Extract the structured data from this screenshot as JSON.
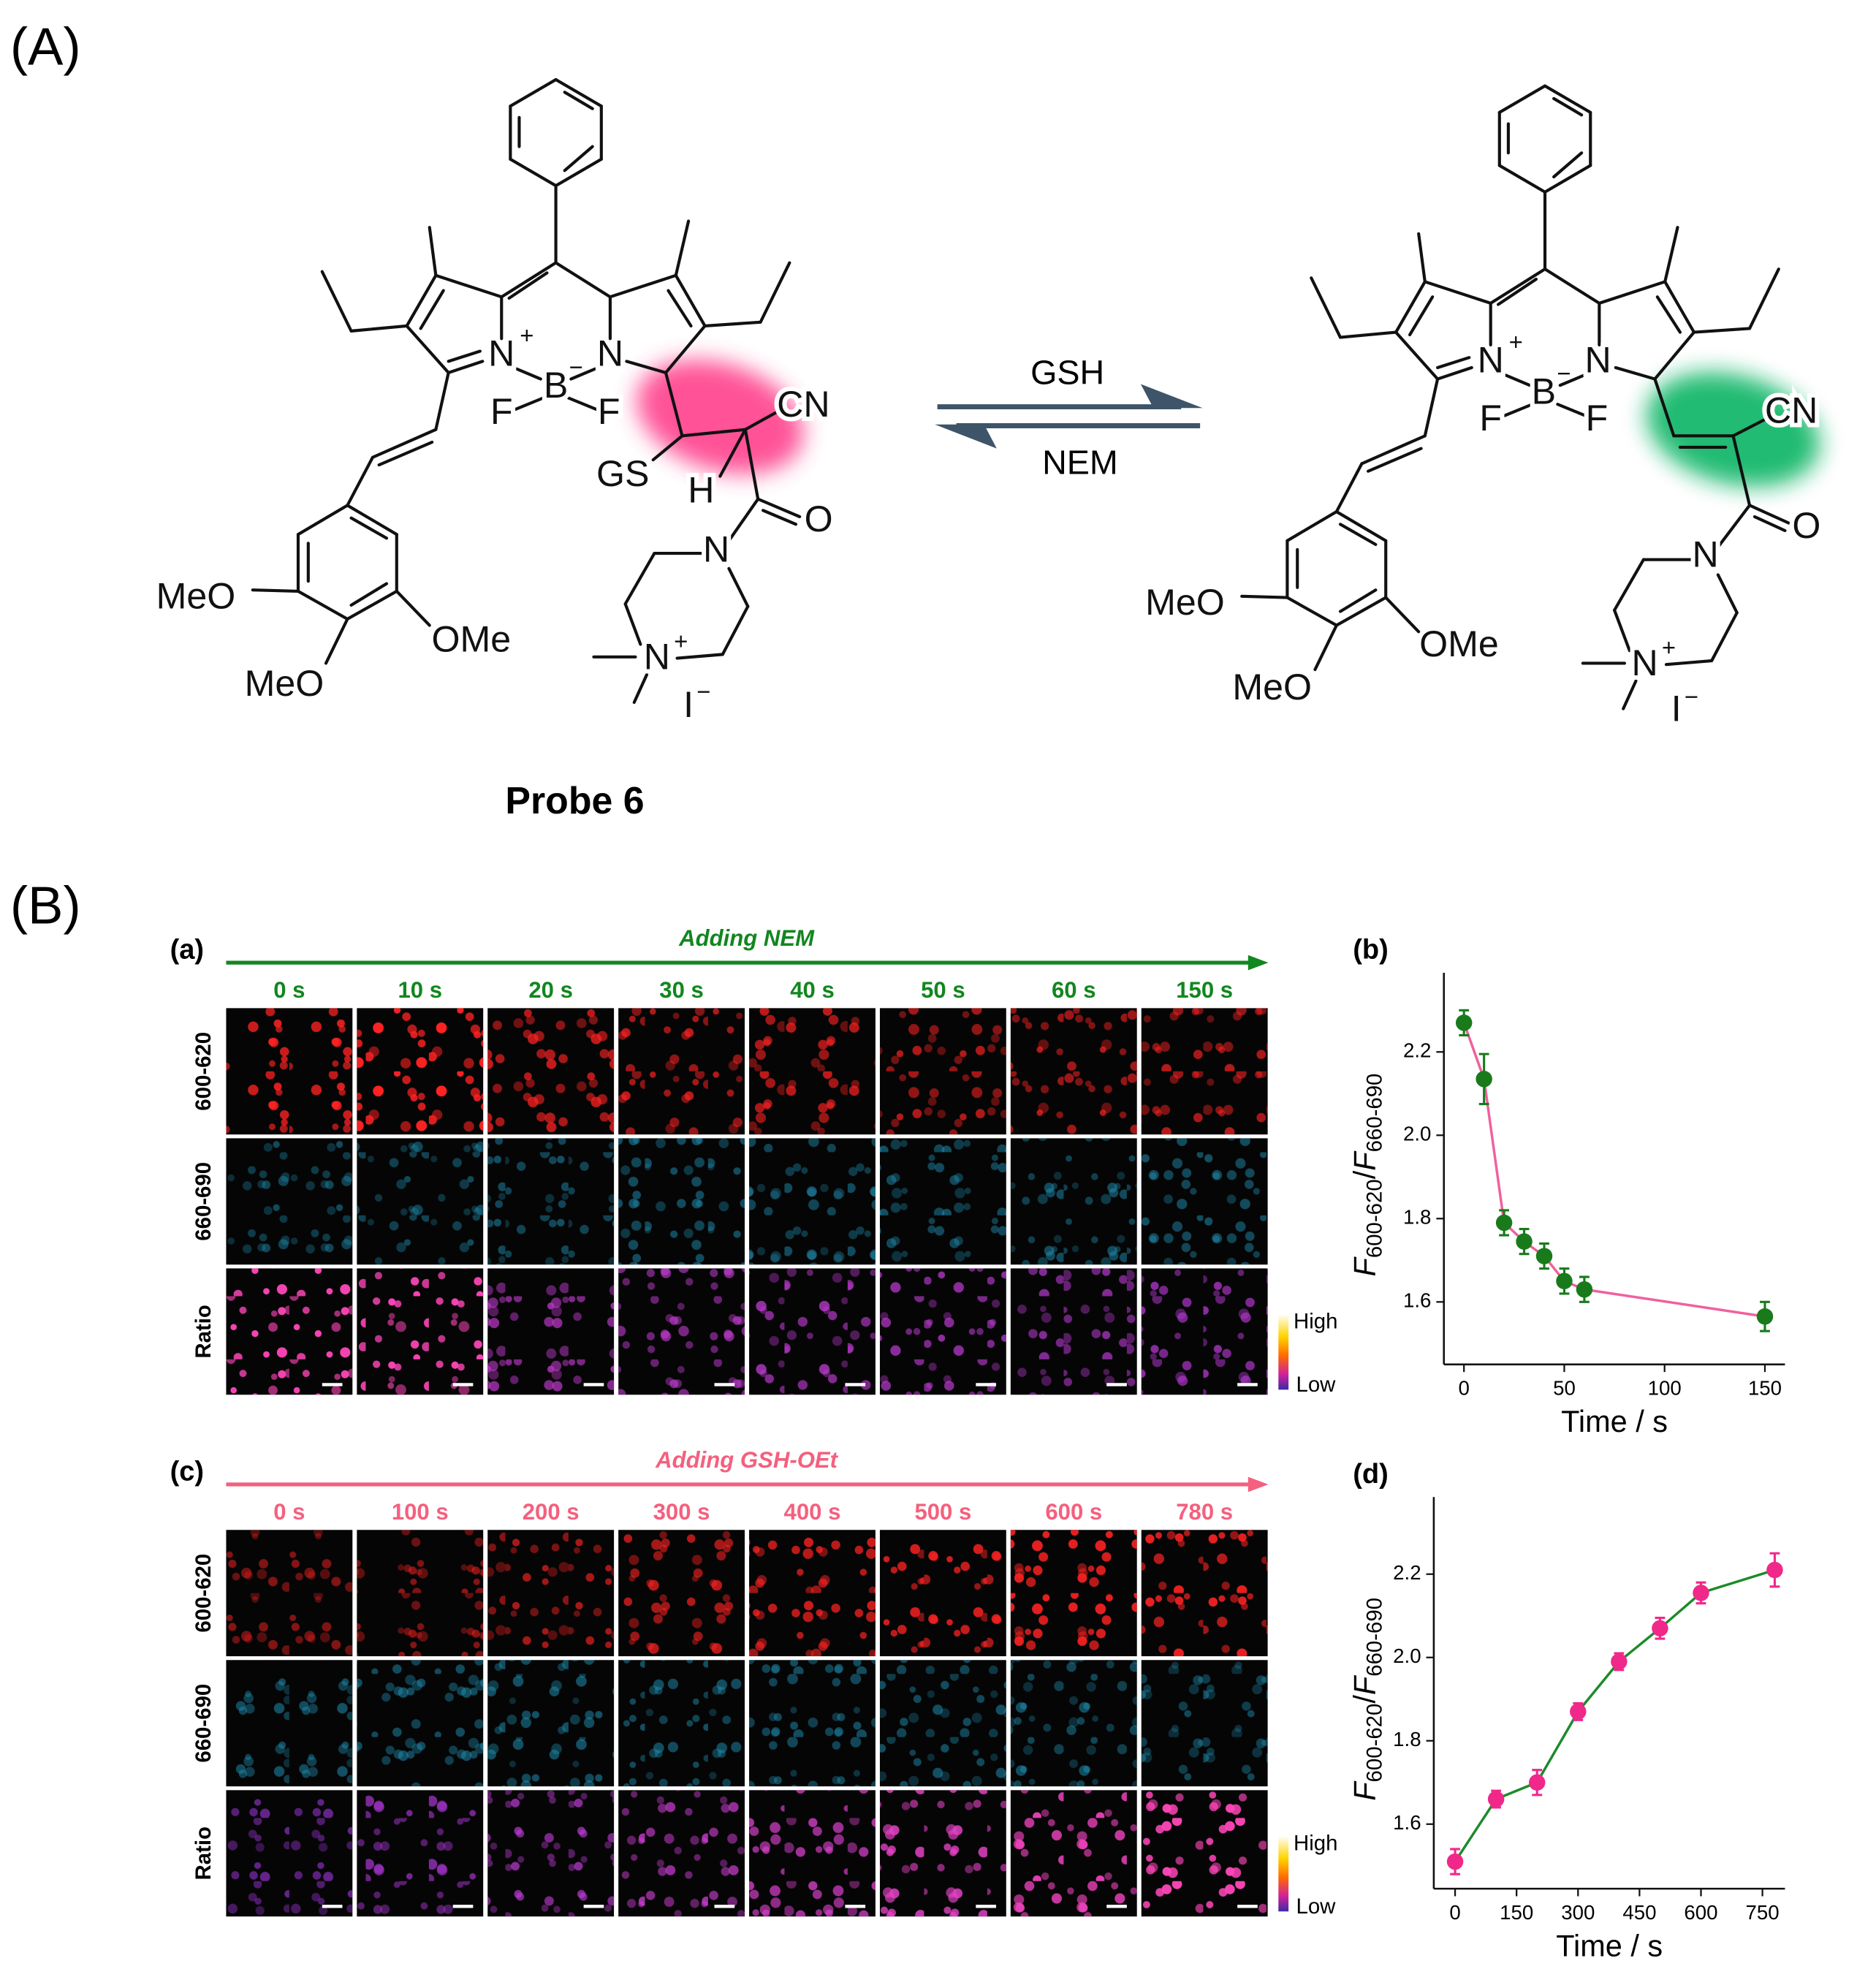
{
  "figure": {
    "panel_A": "(A)",
    "panel_B": "(B)"
  },
  "scheme": {
    "left_labels": [
      "N",
      "+",
      "B",
      "−",
      "N",
      "F",
      "F",
      "GS",
      "H",
      "CN",
      "O",
      "N",
      "N",
      "+",
      "I",
      "−",
      "MeO",
      "OMe",
      "MeO"
    ],
    "right_labels": [
      "N",
      "+",
      "B",
      "−",
      "N",
      "F",
      "F",
      "CN",
      "O",
      "N",
      "N",
      "+",
      "I",
      "−",
      "MeO",
      "OMe",
      "MeO"
    ],
    "forward_reagent": "GSH",
    "reverse_reagent": "NEM",
    "compound_name": "Probe 6"
  },
  "imaging": [
    {
      "label": "(a)",
      "treatment": "Adding NEM",
      "color": "#12861f",
      "times": [
        "0 s",
        "10 s",
        "20 s",
        "30 s",
        "40 s",
        "50 s",
        "60 s",
        "150 s"
      ],
      "channels": [
        "600-620",
        "660-690",
        "Ratio"
      ],
      "scale_high": "High",
      "scale_low": "Low"
    },
    {
      "label": "(c)",
      "treatment": "Adding GSH-OEt",
      "color": "#f4607e",
      "times": [
        "0 s",
        "100 s",
        "200 s",
        "300 s",
        "400 s",
        "500 s",
        "600 s",
        "780 s"
      ],
      "channels": [
        "600-620",
        "660-690",
        "Ratio"
      ],
      "scale_high": "High",
      "scale_low": "Low"
    }
  ],
  "chart_data": [
    {
      "type": "line",
      "label": "(b)",
      "xlabel": "Time / s",
      "ylabel": [
        "F",
        "600-620",
        "/",
        "F",
        "660-690"
      ],
      "x": [
        0,
        10,
        20,
        30,
        40,
        50,
        60,
        150
      ],
      "xlim": [
        -10,
        160
      ],
      "xticks": [
        0,
        50,
        100,
        150
      ],
      "ylim": [
        1.45,
        2.39
      ],
      "yticks": [
        1.6,
        1.8,
        {
          "value": 2,
          "label": "2.0"
        },
        2.2
      ],
      "series": [
        {
          "color": "#197a1c",
          "line_color": "#f0609e",
          "values": [
            2.27,
            2.135,
            1.79,
            1.745,
            1.71,
            1.65,
            1.63,
            1.565
          ],
          "errors": [
            0.03,
            0.06,
            0.03,
            0.03,
            0.03,
            0.03,
            0.03,
            0.035
          ]
        }
      ]
    },
    {
      "type": "line",
      "label": "(d)",
      "xlabel": "Time / s",
      "ylabel": [
        "F",
        "600-620",
        "/",
        "F",
        "660-690"
      ],
      "x": [
        0,
        100,
        200,
        300,
        400,
        500,
        600,
        780
      ],
      "xlim": [
        -52,
        805
      ],
      "xticks": [
        0,
        150,
        300,
        450,
        600,
        750
      ],
      "ylim": [
        1.445,
        2.385
      ],
      "yticks": [
        1.6,
        1.8,
        {
          "value": 2,
          "label": "2.0"
        },
        2.2
      ],
      "series": [
        {
          "color": "#f0288a",
          "line_color": "#1d8a2a",
          "values": [
            1.51,
            1.66,
            1.7,
            1.87,
            1.99,
            2.07,
            2.155,
            2.21
          ],
          "errors": [
            0.03,
            0.02,
            0.03,
            0.02,
            0.02,
            0.025,
            0.025,
            0.04
          ]
        }
      ]
    }
  ]
}
